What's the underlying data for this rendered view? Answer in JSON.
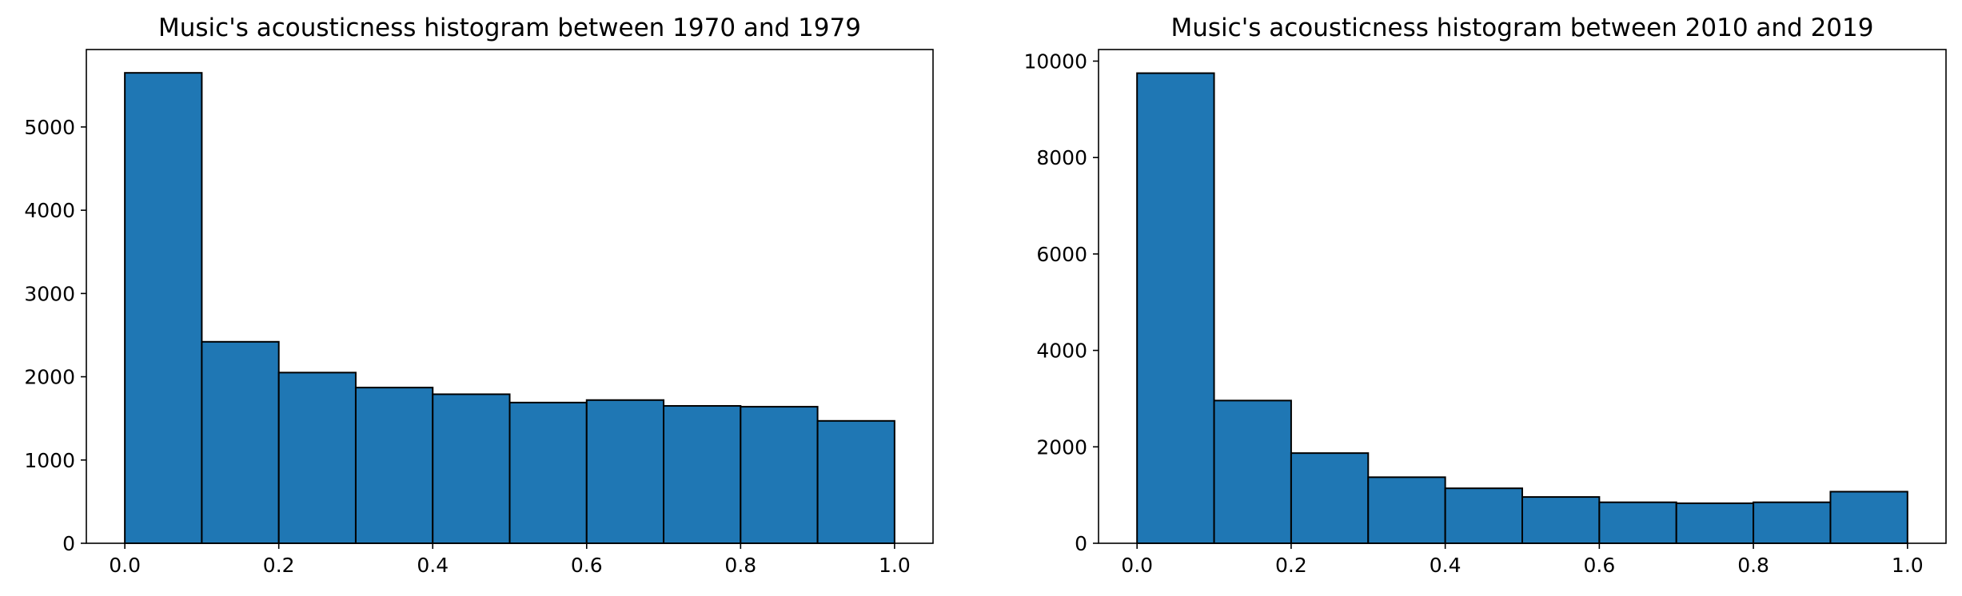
{
  "colors": {
    "bar_fill": "#1f77b4",
    "bar_edge": "#000000",
    "axes": "#000000",
    "background": "#ffffff"
  },
  "chart_data": [
    {
      "type": "bar",
      "title": "Music's acousticness histogram between 1970 and 1979",
      "xlabel": "",
      "ylabel": "",
      "bin_edges": [
        0.0,
        0.1,
        0.2,
        0.3,
        0.4,
        0.5,
        0.6,
        0.7,
        0.8,
        0.9,
        1.0
      ],
      "values": [
        5650,
        2420,
        2050,
        1870,
        1790,
        1690,
        1720,
        1650,
        1640,
        1470
      ],
      "xlim": [
        -0.05,
        1.05
      ],
      "ylim": [
        0,
        5930
      ],
      "xticks": [
        "0.0",
        "0.2",
        "0.4",
        "0.6",
        "0.8",
        "1.0"
      ],
      "yticks": [
        "0",
        "1000",
        "2000",
        "3000",
        "4000",
        "5000"
      ],
      "grid": false,
      "legend": "none"
    },
    {
      "type": "bar",
      "title": "Music's acousticness histogram between 2010 and 2019",
      "xlabel": "",
      "ylabel": "",
      "bin_edges": [
        0.0,
        0.1,
        0.2,
        0.3,
        0.4,
        0.5,
        0.6,
        0.7,
        0.8,
        0.9,
        1.0
      ],
      "values": [
        9750,
        2960,
        1870,
        1370,
        1140,
        960,
        850,
        830,
        850,
        1070
      ],
      "xlim": [
        -0.05,
        1.05
      ],
      "ylim": [
        0,
        10240
      ],
      "xticks": [
        "0.0",
        "0.2",
        "0.4",
        "0.6",
        "0.8",
        "1.0"
      ],
      "yticks": [
        "0",
        "2000",
        "4000",
        "6000",
        "8000",
        "10000"
      ],
      "grid": false,
      "legend": "none"
    }
  ]
}
